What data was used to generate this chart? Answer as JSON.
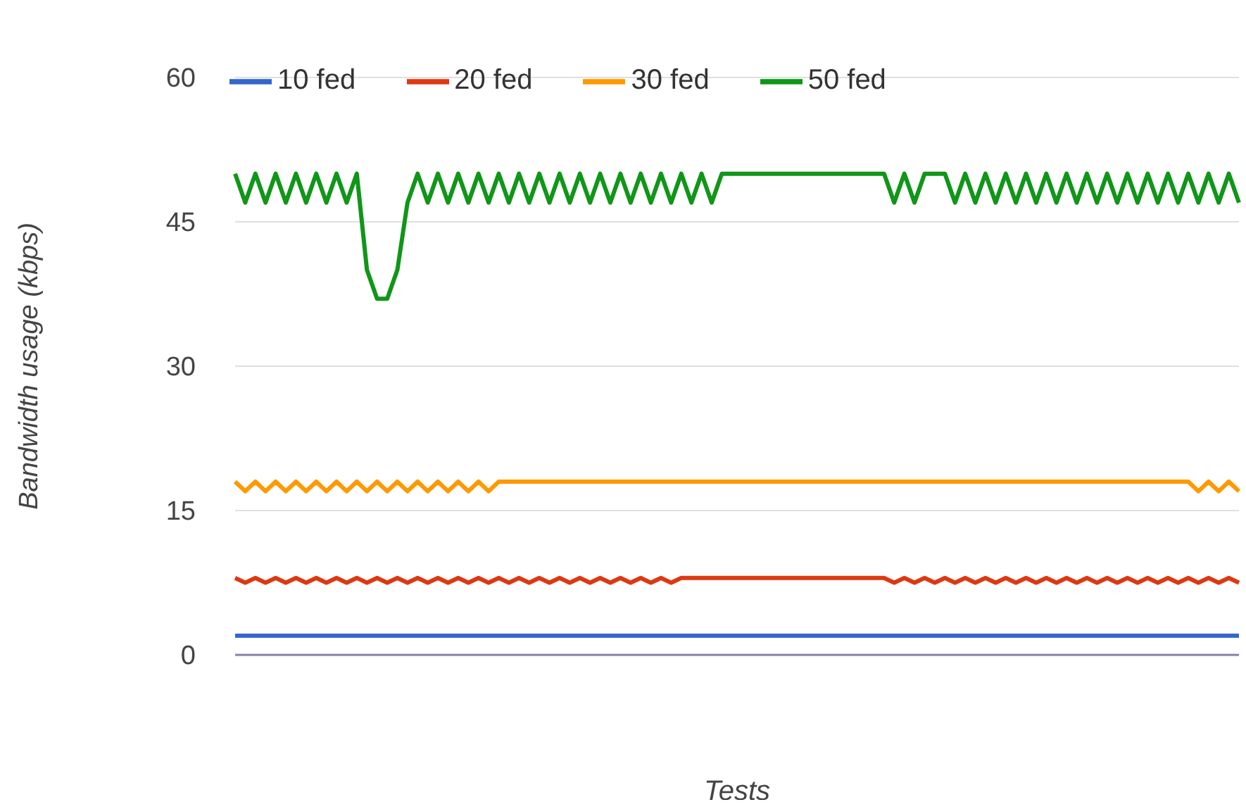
{
  "chart_data": {
    "type": "line",
    "xlabel": "Tests",
    "ylabel": "Bandwidth usage (kbps)",
    "categories": [
      null,
      null,
      null,
      null,
      null,
      null,
      null,
      null,
      null,
      null,
      null,
      null,
      null,
      null,
      null,
      null,
      null,
      null,
      null,
      null,
      null,
      null,
      null,
      null,
      null,
      null,
      null,
      null,
      null,
      null,
      null,
      null,
      null,
      null,
      null,
      null,
      null,
      null,
      null,
      null,
      null,
      null,
      null,
      null,
      null,
      null,
      null,
      null,
      null,
      null,
      null,
      null,
      null,
      null,
      null,
      null,
      null,
      null,
      null,
      null,
      null,
      null,
      null,
      null,
      null,
      null,
      null,
      null,
      null,
      null,
      null,
      null,
      null,
      null,
      null,
      null,
      null,
      null,
      null,
      null,
      null,
      null,
      null,
      null,
      null,
      null,
      null,
      null,
      null,
      null,
      null,
      null,
      null,
      null,
      null,
      null,
      null,
      null,
      null,
      null
    ],
    "series": [
      {
        "name": "10 fed",
        "color": "#3366cc",
        "values": [
          2,
          2,
          2,
          2,
          2,
          2,
          2,
          2,
          2,
          2,
          2,
          2,
          2,
          2,
          2,
          2,
          2,
          2,
          2,
          2,
          2,
          2,
          2,
          2,
          2,
          2,
          2,
          2,
          2,
          2,
          2,
          2,
          2,
          2,
          2,
          2,
          2,
          2,
          2,
          2,
          2,
          2,
          2,
          2,
          2,
          2,
          2,
          2,
          2,
          2,
          2,
          2,
          2,
          2,
          2,
          2,
          2,
          2,
          2,
          2,
          2,
          2,
          2,
          2,
          2,
          2,
          2,
          2,
          2,
          2,
          2,
          2,
          2,
          2,
          2,
          2,
          2,
          2,
          2,
          2,
          2,
          2,
          2,
          2,
          2,
          2,
          2,
          2,
          2,
          2,
          2,
          2,
          2,
          2,
          2,
          2,
          2,
          2,
          2,
          2
        ]
      },
      {
        "name": "20 fed",
        "color": "#dc3912",
        "values": [
          8,
          7.5,
          8,
          7.5,
          8,
          7.5,
          8,
          7.5,
          8,
          7.5,
          8,
          7.5,
          8,
          7.5,
          8,
          7.5,
          8,
          7.5,
          8,
          7.5,
          8,
          7.5,
          8,
          7.5,
          8,
          7.5,
          8,
          7.5,
          8,
          7.5,
          8,
          7.5,
          8,
          7.5,
          8,
          7.5,
          8,
          7.5,
          8,
          7.5,
          8,
          7.5,
          8,
          7.5,
          8,
          8,
          8,
          8,
          8,
          8,
          8,
          8,
          8,
          8,
          8,
          8,
          8,
          8,
          8,
          8,
          8,
          8,
          8,
          8,
          8,
          7.5,
          8,
          7.5,
          8,
          7.5,
          8,
          7.5,
          8,
          7.5,
          8,
          7.5,
          8,
          7.5,
          8,
          7.5,
          8,
          7.5,
          8,
          7.5,
          8,
          7.5,
          8,
          7.5,
          8,
          7.5,
          8,
          7.5,
          8,
          7.5,
          8,
          7.5,
          8,
          7.5,
          8,
          7.5
        ]
      },
      {
        "name": "30 fed",
        "color": "#ff9900",
        "values": [
          18,
          17,
          18,
          17,
          18,
          17,
          18,
          17,
          18,
          17,
          18,
          17,
          18,
          17,
          18,
          17,
          18,
          17,
          18,
          17,
          18,
          17,
          18,
          17,
          18,
          17,
          18,
          18,
          18,
          18,
          18,
          18,
          18,
          18,
          18,
          18,
          18,
          18,
          18,
          18,
          18,
          18,
          18,
          18,
          18,
          18,
          18,
          18,
          18,
          18,
          18,
          18,
          18,
          18,
          18,
          18,
          18,
          18,
          18,
          18,
          18,
          18,
          18,
          18,
          18,
          18,
          18,
          18,
          18,
          18,
          18,
          18,
          18,
          18,
          18,
          18,
          18,
          18,
          18,
          18,
          18,
          18,
          18,
          18,
          18,
          18,
          18,
          18,
          18,
          18,
          18,
          18,
          18,
          18,
          18,
          17,
          18,
          17,
          18,
          17
        ]
      },
      {
        "name": "50 fed",
        "color": "#109618",
        "values": [
          50,
          47,
          50,
          47,
          50,
          47,
          50,
          47,
          50,
          47,
          50,
          47,
          50,
          40,
          37,
          37,
          40,
          47,
          50,
          47,
          50,
          47,
          50,
          47,
          50,
          47,
          50,
          47,
          50,
          47,
          50,
          47,
          50,
          47,
          50,
          47,
          50,
          47,
          50,
          47,
          50,
          47,
          50,
          47,
          50,
          47,
          50,
          47,
          50,
          50,
          50,
          50,
          50,
          50,
          50,
          50,
          50,
          50,
          50,
          50,
          50,
          50,
          50,
          50,
          50,
          47,
          50,
          47,
          50,
          50,
          50,
          47,
          50,
          47,
          50,
          47,
          50,
          47,
          50,
          47,
          50,
          47,
          50,
          47,
          50,
          47,
          50,
          47,
          50,
          47,
          50,
          47,
          50,
          47,
          50,
          47,
          50,
          47,
          50,
          47
        ]
      }
    ],
    "ylim": [
      0,
      60
    ],
    "yticks": [
      0,
      15,
      30,
      45,
      60
    ],
    "grid": "y",
    "legend": "top",
    "marker": "none",
    "line_style": "solid"
  }
}
